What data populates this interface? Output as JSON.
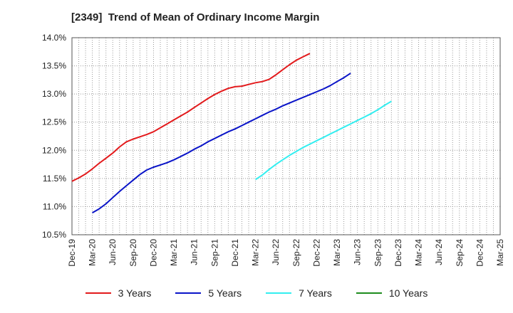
{
  "chart_data": {
    "type": "line",
    "title": "[2349]  Trend of Mean of Ordinary Income Margin",
    "x_tick_labels": [
      "Dec-19",
      "Mar-20",
      "Jun-20",
      "Sep-20",
      "Dec-20",
      "Mar-21",
      "Jun-21",
      "Sep-21",
      "Dec-21",
      "Mar-22",
      "Jun-22",
      "Sep-22",
      "Dec-22",
      "Mar-23",
      "Jun-23",
      "Sep-23",
      "Dec-23",
      "Mar-24",
      "Jun-24",
      "Sep-24",
      "Dec-24",
      "Mar-25"
    ],
    "y_tick_labels": [
      "14.0%",
      "13.5%",
      "13.0%",
      "12.5%",
      "12.0%",
      "11.5%",
      "11.0%",
      "10.5%"
    ],
    "ylim": [
      10.5,
      14.0
    ],
    "y_unit": "%",
    "grid": true,
    "legend_position": "bottom",
    "series": [
      {
        "name": "3 Years",
        "color": "#e31a1c",
        "start": "Dec-19",
        "values": [
          11.45,
          11.51,
          11.58,
          11.67,
          11.77,
          11.86,
          11.95,
          12.06,
          12.15,
          12.2,
          12.24,
          12.28,
          12.33,
          12.4,
          12.47,
          12.54,
          12.61,
          12.68,
          12.76,
          12.84,
          12.92,
          12.99,
          13.05,
          13.1,
          13.13,
          13.14,
          13.17,
          13.2,
          13.22,
          13.26,
          13.34,
          13.43,
          13.52,
          13.6,
          13.66,
          13.72
        ]
      },
      {
        "name": "5 Years",
        "color": "#0a14c8",
        "start": "Mar-20",
        "values": [
          10.89,
          10.96,
          11.05,
          11.16,
          11.27,
          11.37,
          11.47,
          11.57,
          11.65,
          11.7,
          11.74,
          11.78,
          11.83,
          11.89,
          11.95,
          12.02,
          12.08,
          12.15,
          12.21,
          12.27,
          12.33,
          12.38,
          12.44,
          12.5,
          12.56,
          12.62,
          12.68,
          12.73,
          12.79,
          12.84,
          12.89,
          12.94,
          12.99,
          13.04,
          13.09,
          13.15,
          13.22,
          13.29,
          13.37
        ]
      },
      {
        "name": "7 Years",
        "color": "#33eef0",
        "start": "Mar-22",
        "values": [
          11.48,
          11.56,
          11.66,
          11.75,
          11.83,
          11.91,
          11.98,
          12.05,
          12.11,
          12.17,
          12.23,
          12.29,
          12.35,
          12.41,
          12.47,
          12.53,
          12.59,
          12.65,
          12.72,
          12.8,
          12.87
        ]
      },
      {
        "name": "10 Years",
        "color": "#1e8c1e",
        "start": "Mar-25",
        "values": []
      }
    ]
  }
}
